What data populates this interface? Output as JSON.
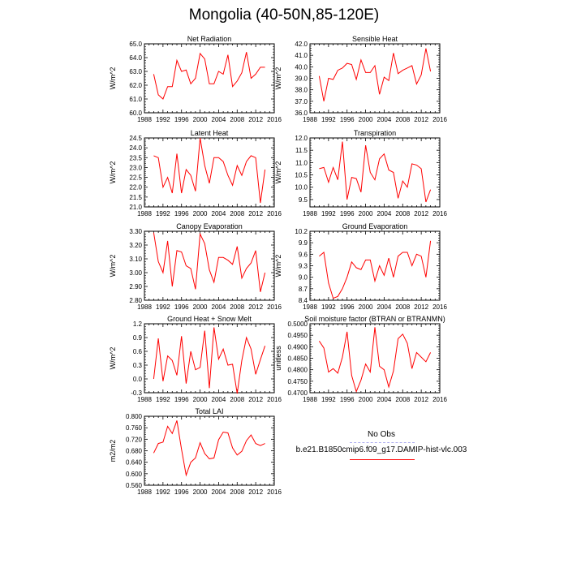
{
  "page_title": "Mongolia (40-50N,85-120E)",
  "legend": {
    "obs_label": "No Obs",
    "obs_color": "#aaaaee",
    "model_label": "b.e21.B1850cmip6.f09_g17.DAMIP-hist-vlc.003",
    "model_color": "#ff0000"
  },
  "chart_data": [
    {
      "type": "line",
      "title": "Net Radiation",
      "ylabel": "W/m^2",
      "xlabel": "",
      "xlim": [
        1988,
        2016
      ],
      "xticks": [
        1988,
        1992,
        1996,
        2000,
        2004,
        2008,
        2012,
        2016
      ],
      "ylim": [
        60.0,
        65.0
      ],
      "yticks": [
        "60.0",
        "61.0",
        "62.0",
        "63.0",
        "64.0",
        "65.0"
      ],
      "series": [
        {
          "color": "#ff0000",
          "x": [
            1990,
            1991,
            1992,
            1993,
            1994,
            1995,
            1996,
            1997,
            1998,
            1999,
            2000,
            2001,
            2002,
            2003,
            2004,
            2005,
            2006,
            2007,
            2008,
            2009,
            2010,
            2011,
            2012,
            2013,
            2014
          ],
          "y": [
            62.8,
            61.3,
            61.0,
            61.9,
            61.9,
            63.8,
            63.0,
            63.1,
            62.1,
            62.5,
            64.3,
            63.9,
            62.1,
            62.1,
            63.0,
            62.8,
            64.2,
            61.9,
            62.3,
            62.9,
            64.4,
            62.5,
            62.8,
            63.3,
            63.3
          ]
        }
      ]
    },
    {
      "type": "line",
      "title": "Sensible Heat",
      "ylabel": "W/m^2",
      "xlabel": "",
      "xlim": [
        1988,
        2016
      ],
      "xticks": [
        1988,
        1992,
        1996,
        2000,
        2004,
        2008,
        2012,
        2016
      ],
      "ylim": [
        36.0,
        42.0
      ],
      "yticks": [
        "36.0",
        "37.0",
        "38.0",
        "39.0",
        "40.0",
        "41.0",
        "42.0"
      ],
      "series": [
        {
          "color": "#ff0000",
          "x": [
            1990,
            1991,
            1992,
            1993,
            1994,
            1995,
            1996,
            1997,
            1998,
            1999,
            2000,
            2001,
            2002,
            2003,
            2004,
            2005,
            2006,
            2007,
            2008,
            2009,
            2010,
            2011,
            2012,
            2013,
            2014
          ],
          "y": [
            39.2,
            37.0,
            39.0,
            38.9,
            39.7,
            39.9,
            40.3,
            40.2,
            38.9,
            40.6,
            39.5,
            39.5,
            40.1,
            37.6,
            39.1,
            38.8,
            41.2,
            39.4,
            39.7,
            39.9,
            40.1,
            38.5,
            39.3,
            41.6,
            39.6
          ]
        }
      ]
    },
    {
      "type": "line",
      "title": "Latent Heat",
      "ylabel": "W/m^2",
      "xlabel": "",
      "xlim": [
        1988,
        2016
      ],
      "xticks": [
        1988,
        1992,
        1996,
        2000,
        2004,
        2008,
        2012,
        2016
      ],
      "ylim": [
        21.0,
        24.5
      ],
      "yticks": [
        "21.0",
        "21.5",
        "22.0",
        "22.5",
        "23.0",
        "23.5",
        "24.0",
        "24.5"
      ],
      "series": [
        {
          "color": "#ff0000",
          "x": [
            1990,
            1991,
            1992,
            1993,
            1994,
            1995,
            1996,
            1997,
            1998,
            1999,
            2000,
            2001,
            2002,
            2003,
            2004,
            2005,
            2006,
            2007,
            2008,
            2009,
            2010,
            2011,
            2012,
            2013,
            2014
          ],
          "y": [
            23.6,
            23.5,
            22.0,
            22.5,
            21.7,
            23.7,
            21.7,
            22.9,
            22.6,
            21.8,
            24.5,
            23.1,
            22.2,
            23.5,
            23.5,
            23.3,
            22.6,
            22.1,
            23.1,
            22.6,
            23.3,
            23.6,
            23.5,
            21.2,
            22.9
          ]
        }
      ]
    },
    {
      "type": "line",
      "title": "Transpiration",
      "ylabel": "W/m^2",
      "xlabel": "",
      "xlim": [
        1988,
        2016
      ],
      "xticks": [
        1988,
        1992,
        1996,
        2000,
        2004,
        2008,
        2012,
        2016
      ],
      "ylim": [
        9.2,
        12.0
      ],
      "yticks": [
        "9.5",
        "10.0",
        "10.5",
        "11.0",
        "11.5",
        "12.0"
      ],
      "series": [
        {
          "color": "#ff0000",
          "x": [
            1990,
            1991,
            1992,
            1993,
            1994,
            1995,
            1996,
            1997,
            1998,
            1999,
            2000,
            2001,
            2002,
            2003,
            2004,
            2005,
            2006,
            2007,
            2008,
            2009,
            2010,
            2011,
            2012,
            2013,
            2014
          ],
          "y": [
            10.75,
            10.8,
            10.2,
            10.8,
            10.3,
            11.85,
            9.5,
            10.4,
            10.35,
            9.8,
            11.7,
            10.6,
            10.3,
            11.15,
            11.35,
            10.7,
            10.6,
            9.55,
            10.25,
            10.0,
            10.95,
            10.9,
            10.75,
            9.4,
            9.9
          ]
        }
      ]
    },
    {
      "type": "line",
      "title": "Canopy Evaporation",
      "ylabel": "W/m^2",
      "xlabel": "",
      "xlim": [
        1988,
        2016
      ],
      "xticks": [
        1988,
        1992,
        1996,
        2000,
        2004,
        2008,
        2012,
        2016
      ],
      "ylim": [
        2.8,
        3.3
      ],
      "yticks": [
        "2.80",
        "2.90",
        "3.00",
        "3.10",
        "3.20",
        "3.30"
      ],
      "series": [
        {
          "color": "#ff0000",
          "x": [
            1990,
            1991,
            1992,
            1993,
            1994,
            1995,
            1996,
            1997,
            1998,
            1999,
            2000,
            2001,
            2002,
            2003,
            2004,
            2005,
            2006,
            2007,
            2008,
            2009,
            2010,
            2011,
            2012,
            2013,
            2014
          ],
          "y": [
            3.29,
            3.08,
            3.0,
            3.23,
            2.9,
            3.16,
            3.15,
            3.05,
            3.03,
            2.88,
            3.28,
            3.21,
            3.02,
            2.93,
            3.11,
            3.11,
            3.09,
            3.06,
            3.19,
            2.96,
            3.03,
            3.07,
            3.16,
            2.86,
            3.0
          ]
        }
      ]
    },
    {
      "type": "line",
      "title": "Ground Evaporation",
      "ylabel": "W/m^2",
      "xlabel": "",
      "xlim": [
        1988,
        2016
      ],
      "xticks": [
        1988,
        1992,
        1996,
        2000,
        2004,
        2008,
        2012,
        2016
      ],
      "ylim": [
        8.4,
        10.2
      ],
      "yticks": [
        "8.4",
        "8.7",
        "9.0",
        "9.3",
        "9.6",
        "9.9",
        "10.2"
      ],
      "series": [
        {
          "color": "#ff0000",
          "x": [
            1990,
            1991,
            1992,
            1993,
            1994,
            1995,
            1996,
            1997,
            1998,
            1999,
            2000,
            2001,
            2002,
            2003,
            2004,
            2005,
            2006,
            2007,
            2008,
            2009,
            2010,
            2011,
            2012,
            2013,
            2014
          ],
          "y": [
            9.55,
            9.65,
            8.85,
            8.45,
            8.5,
            8.7,
            9.0,
            9.4,
            9.25,
            9.2,
            9.45,
            9.45,
            8.9,
            9.3,
            9.05,
            9.5,
            9.0,
            9.55,
            9.65,
            9.65,
            9.3,
            9.6,
            9.55,
            9.0,
            9.95
          ]
        }
      ]
    },
    {
      "type": "line",
      "title": "Ground Heat + Snow Melt",
      "ylabel": "W/m^2",
      "xlabel": "",
      "xlim": [
        1988,
        2016
      ],
      "xticks": [
        1988,
        1992,
        1996,
        2000,
        2004,
        2008,
        2012,
        2016
      ],
      "ylim": [
        -0.3,
        1.2
      ],
      "yticks": [
        "-0.3",
        "0.0",
        "0.3",
        "0.6",
        "0.9",
        "1.2"
      ],
      "series": [
        {
          "color": "#ff0000",
          "x": [
            1990,
            1991,
            1992,
            1993,
            1994,
            1995,
            1996,
            1997,
            1998,
            1999,
            2000,
            2001,
            2002,
            2003,
            2004,
            2005,
            2006,
            2007,
            2008,
            2009,
            2010,
            2011,
            2012,
            2013,
            2014
          ],
          "y": [
            0.0,
            0.88,
            -0.05,
            0.5,
            0.4,
            0.08,
            0.93,
            -0.1,
            0.6,
            0.2,
            0.25,
            1.05,
            -0.2,
            1.12,
            0.43,
            0.65,
            0.3,
            0.32,
            -0.32,
            0.4,
            0.9,
            0.65,
            0.1,
            0.42,
            0.72
          ]
        }
      ]
    },
    {
      "type": "line",
      "title": "Soil moisture factor (BTRAN or BTRANMN)",
      "ylabel": "unitless",
      "xlabel": "",
      "xlim": [
        1988,
        2016
      ],
      "xticks": [
        1988,
        1992,
        1996,
        2000,
        2004,
        2008,
        2012,
        2016
      ],
      "ylim": [
        0.47,
        0.5
      ],
      "yticks": [
        "0.4700",
        "0.4750",
        "0.4800",
        "0.4850",
        "0.4900",
        "0.4950",
        "0.5000"
      ],
      "series": [
        {
          "color": "#ff0000",
          "x": [
            1990,
            1991,
            1992,
            1993,
            1994,
            1995,
            1996,
            1997,
            1998,
            1999,
            2000,
            2001,
            2002,
            2003,
            2004,
            2005,
            2006,
            2007,
            2008,
            2009,
            2010,
            2011,
            2012,
            2013,
            2014
          ],
          "y": [
            0.4925,
            0.4895,
            0.479,
            0.4805,
            0.4785,
            0.4855,
            0.4965,
            0.4775,
            0.4705,
            0.4755,
            0.4825,
            0.479,
            0.4985,
            0.4815,
            0.48,
            0.4725,
            0.4795,
            0.4935,
            0.4955,
            0.4915,
            0.4805,
            0.4875,
            0.4855,
            0.4835,
            0.4875
          ]
        }
      ]
    },
    {
      "type": "line",
      "title": "Total LAI",
      "ylabel": "m2/m2",
      "xlabel": "",
      "xlim": [
        1988,
        2016
      ],
      "xticks": [
        1988,
        1992,
        1996,
        2000,
        2004,
        2008,
        2012,
        2016
      ],
      "ylim": [
        0.56,
        0.8
      ],
      "yticks": [
        "0.560",
        "0.600",
        "0.640",
        "0.680",
        "0.720",
        "0.760",
        "0.800"
      ],
      "series": [
        {
          "color": "#ff0000",
          "x": [
            1990,
            1991,
            1992,
            1993,
            1994,
            1995,
            1996,
            1997,
            1998,
            1999,
            2000,
            2001,
            2002,
            2003,
            2004,
            2005,
            2006,
            2007,
            2008,
            2009,
            2010,
            2011,
            2012,
            2013,
            2014
          ],
          "y": [
            0.672,
            0.705,
            0.71,
            0.765,
            0.74,
            0.785,
            0.685,
            0.595,
            0.64,
            0.655,
            0.708,
            0.67,
            0.652,
            0.655,
            0.718,
            0.745,
            0.742,
            0.69,
            0.665,
            0.678,
            0.715,
            0.735,
            0.705,
            0.698,
            0.705
          ]
        }
      ]
    }
  ]
}
